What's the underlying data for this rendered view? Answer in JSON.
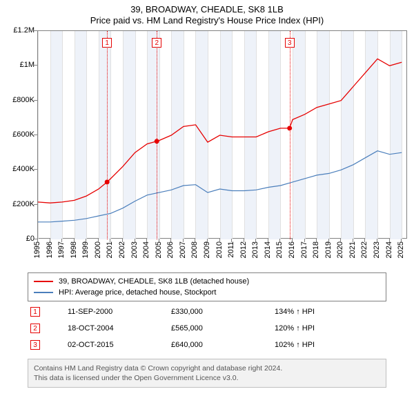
{
  "title_line1": "39, BROADWAY, CHEADLE, SK8 1LB",
  "title_line2": "Price paid vs. HM Land Registry's House Price Index (HPI)",
  "chart": {
    "type": "line",
    "background_color": "#ffffff",
    "border_color": "#808080",
    "grid_color": "#e0e0e0",
    "band_color": "#eef2f9",
    "xlim": [
      1995,
      2025.5
    ],
    "ylim": [
      0,
      1200000
    ],
    "yticks": [
      0,
      200000,
      400000,
      600000,
      800000,
      1000000,
      1200000
    ],
    "ytick_labels": [
      "£0",
      "£200K",
      "£400K",
      "£600K",
      "£800K",
      "£1M",
      "£1.2M"
    ],
    "xticks": [
      1995,
      1996,
      1997,
      1998,
      1999,
      2000,
      2001,
      2002,
      2003,
      2004,
      2005,
      2006,
      2007,
      2008,
      2009,
      2010,
      2011,
      2012,
      2013,
      2014,
      2015,
      2016,
      2017,
      2018,
      2019,
      2020,
      2021,
      2022,
      2023,
      2024,
      2025
    ],
    "xtick_labels": [
      "1995",
      "1996",
      "1997",
      "1998",
      "1999",
      "2000",
      "2001",
      "2002",
      "2003",
      "2004",
      "2005",
      "2006",
      "2007",
      "2008",
      "2009",
      "2010",
      "2011",
      "2012",
      "2013",
      "2014",
      "2015",
      "2016",
      "2017",
      "2018",
      "2019",
      "2020",
      "2021",
      "2022",
      "2023",
      "2024",
      "2025"
    ],
    "bands": [
      [
        1996,
        1997
      ],
      [
        1998,
        1999
      ],
      [
        2000,
        2001
      ],
      [
        2002,
        2003
      ],
      [
        2004,
        2005
      ],
      [
        2006,
        2007
      ],
      [
        2008,
        2009
      ],
      [
        2010,
        2011
      ],
      [
        2012,
        2013
      ],
      [
        2014,
        2015
      ],
      [
        2016,
        2017
      ],
      [
        2018,
        2019
      ],
      [
        2020,
        2021
      ],
      [
        2022,
        2023
      ],
      [
        2024,
        2025
      ]
    ],
    "series": [
      {
        "name": "39, BROADWAY, CHEADLE, SK8 1LB (detached house)",
        "color": "#e60000",
        "line_width": 1.3,
        "points": [
          [
            1995,
            215000
          ],
          [
            1996,
            210000
          ],
          [
            1997,
            215000
          ],
          [
            1998,
            225000
          ],
          [
            1999,
            250000
          ],
          [
            2000,
            290000
          ],
          [
            2000.7,
            330000
          ],
          [
            2001,
            350000
          ],
          [
            2002,
            420000
          ],
          [
            2003,
            500000
          ],
          [
            2004,
            550000
          ],
          [
            2004.8,
            565000
          ],
          [
            2005,
            570000
          ],
          [
            2006,
            600000
          ],
          [
            2007,
            650000
          ],
          [
            2008,
            660000
          ],
          [
            2009,
            560000
          ],
          [
            2010,
            600000
          ],
          [
            2011,
            590000
          ],
          [
            2012,
            590000
          ],
          [
            2013,
            590000
          ],
          [
            2014,
            620000
          ],
          [
            2015,
            640000
          ],
          [
            2015.75,
            640000
          ],
          [
            2016,
            690000
          ],
          [
            2017,
            720000
          ],
          [
            2018,
            760000
          ],
          [
            2019,
            780000
          ],
          [
            2020,
            800000
          ],
          [
            2021,
            880000
          ],
          [
            2022,
            960000
          ],
          [
            2023,
            1040000
          ],
          [
            2024,
            1000000
          ],
          [
            2025,
            1020000
          ]
        ]
      },
      {
        "name": "HPI: Average price, detached house, Stockport",
        "color": "#4a7ebb",
        "line_width": 1.2,
        "points": [
          [
            1995,
            100000
          ],
          [
            1996,
            100000
          ],
          [
            1997,
            105000
          ],
          [
            1998,
            110000
          ],
          [
            1999,
            120000
          ],
          [
            2000,
            135000
          ],
          [
            2001,
            150000
          ],
          [
            2002,
            180000
          ],
          [
            2003,
            220000
          ],
          [
            2004,
            255000
          ],
          [
            2005,
            270000
          ],
          [
            2006,
            285000
          ],
          [
            2007,
            310000
          ],
          [
            2008,
            315000
          ],
          [
            2009,
            270000
          ],
          [
            2010,
            290000
          ],
          [
            2011,
            280000
          ],
          [
            2012,
            280000
          ],
          [
            2013,
            285000
          ],
          [
            2014,
            300000
          ],
          [
            2015,
            310000
          ],
          [
            2016,
            330000
          ],
          [
            2017,
            350000
          ],
          [
            2018,
            370000
          ],
          [
            2019,
            380000
          ],
          [
            2020,
            400000
          ],
          [
            2021,
            430000
          ],
          [
            2022,
            470000
          ],
          [
            2023,
            510000
          ],
          [
            2024,
            490000
          ],
          [
            2025,
            500000
          ]
        ]
      }
    ],
    "sale_markers": [
      {
        "idx": "1",
        "x": 2000.7,
        "y": 330000
      },
      {
        "idx": "2",
        "x": 2004.8,
        "y": 565000
      },
      {
        "idx": "3",
        "x": 2015.75,
        "y": 640000
      }
    ],
    "marker_color": "#e60000",
    "label_fontsize": 11
  },
  "legend": {
    "items": [
      {
        "color": "#e60000",
        "label": "39, BROADWAY, CHEADLE, SK8 1LB (detached house)"
      },
      {
        "color": "#4a7ebb",
        "label": "HPI: Average price, detached house, Stockport"
      }
    ]
  },
  "sales": [
    {
      "idx": "1",
      "date": "11-SEP-2000",
      "price": "£330,000",
      "hpi": "134% ↑ HPI"
    },
    {
      "idx": "2",
      "date": "18-OCT-2004",
      "price": "£565,000",
      "hpi": "120% ↑ HPI"
    },
    {
      "idx": "3",
      "date": "02-OCT-2015",
      "price": "£640,000",
      "hpi": "102% ↑ HPI"
    }
  ],
  "attribution_line1": "Contains HM Land Registry data © Crown copyright and database right 2024.",
  "attribution_line2": "This data is licensed under the Open Government Licence v3.0."
}
